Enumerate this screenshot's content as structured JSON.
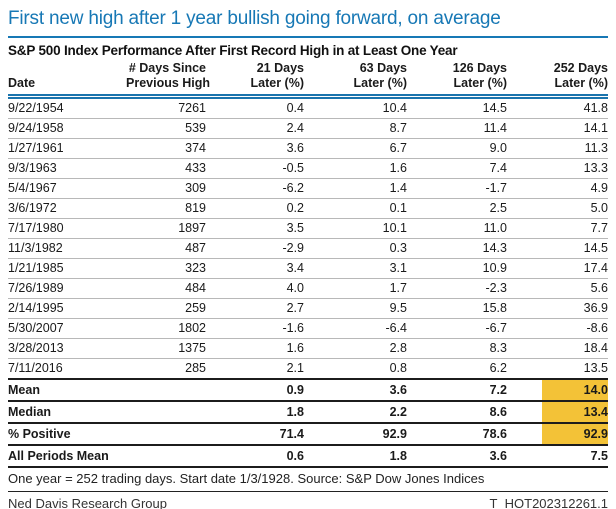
{
  "footnote": "One year = 252 trading days. Start date 1/3/1928. Source: S&P Dow Jones Indices",
  "footer": {
    "left": "Ned Davis Research Group",
    "right": "T_HOT202312261.1"
  },
  "colors": {
    "accent_blue": "#1778B5",
    "highlight_gold": "#F3C237",
    "data_row_separator": "#b8b8b8",
    "summary_row_separator": "#1c1c1c"
  },
  "chart_data": {
    "type": "table",
    "title": "First new high after 1 year bullish going forward, on average",
    "subtitle": "S&P 500 Index Performance After First Record High in at Least One Year",
    "column_headers": [
      {
        "line1": "",
        "line2": "Date"
      },
      {
        "line1": "# Days Since",
        "line2": "Previous High"
      },
      {
        "line1": "21 Days",
        "line2": "Later (%)"
      },
      {
        "line1": "63 Days",
        "line2": "Later (%)"
      },
      {
        "line1": "126 Days",
        "line2": "Later (%)"
      },
      {
        "line1": "252 Days",
        "line2": "Later (%)"
      }
    ],
    "rows": [
      [
        "9/22/1954",
        "7261",
        "0.4",
        "10.4",
        "14.5",
        "41.8"
      ],
      [
        "9/24/1958",
        "539",
        "2.4",
        "8.7",
        "11.4",
        "14.1"
      ],
      [
        "1/27/1961",
        "374",
        "3.6",
        "6.7",
        "9.0",
        "11.3"
      ],
      [
        "9/3/1963",
        "433",
        "-0.5",
        "1.6",
        "7.4",
        "13.3"
      ],
      [
        "5/4/1967",
        "309",
        "-6.2",
        "1.4",
        "-1.7",
        "4.9"
      ],
      [
        "3/6/1972",
        "819",
        "0.2",
        "0.1",
        "2.5",
        "5.0"
      ],
      [
        "7/17/1980",
        "1897",
        "3.5",
        "10.1",
        "11.0",
        "7.7"
      ],
      [
        "11/3/1982",
        "487",
        "-2.9",
        "0.3",
        "14.3",
        "14.5"
      ],
      [
        "1/21/1985",
        "323",
        "3.4",
        "3.1",
        "10.9",
        "17.4"
      ],
      [
        "7/26/1989",
        "484",
        "4.0",
        "1.7",
        "-2.3",
        "5.6"
      ],
      [
        "2/14/1995",
        "259",
        "2.7",
        "9.5",
        "15.8",
        "36.9"
      ],
      [
        "5/30/2007",
        "1802",
        "-1.6",
        "-6.4",
        "-6.7",
        "-8.6"
      ],
      [
        "3/28/2013",
        "1375",
        "1.6",
        "2.8",
        "8.3",
        "18.4"
      ],
      [
        "7/11/2016",
        "285",
        "2.1",
        "0.8",
        "6.2",
        "13.5"
      ]
    ],
    "summary_rows": [
      {
        "cells": [
          "Mean",
          "",
          "0.9",
          "3.6",
          "7.2",
          "14.0"
        ],
        "highlight_last": true
      },
      {
        "cells": [
          "Median",
          "",
          "1.8",
          "2.2",
          "8.6",
          "13.4"
        ],
        "highlight_last": true
      },
      {
        "cells": [
          "% Positive",
          "",
          "71.4",
          "92.9",
          "78.6",
          "92.9"
        ],
        "highlight_last": true
      },
      {
        "cells": [
          "All Periods Mean",
          "",
          "0.6",
          "1.8",
          "3.6",
          "7.5"
        ],
        "highlight_last": false
      }
    ],
    "layout_hints": {
      "first_column_align": "left",
      "value_columns_align": "right",
      "highlighted_column": "252 Days Later (%)",
      "highlighted_summary_rows": [
        "Mean",
        "Median",
        "% Positive"
      ]
    }
  }
}
